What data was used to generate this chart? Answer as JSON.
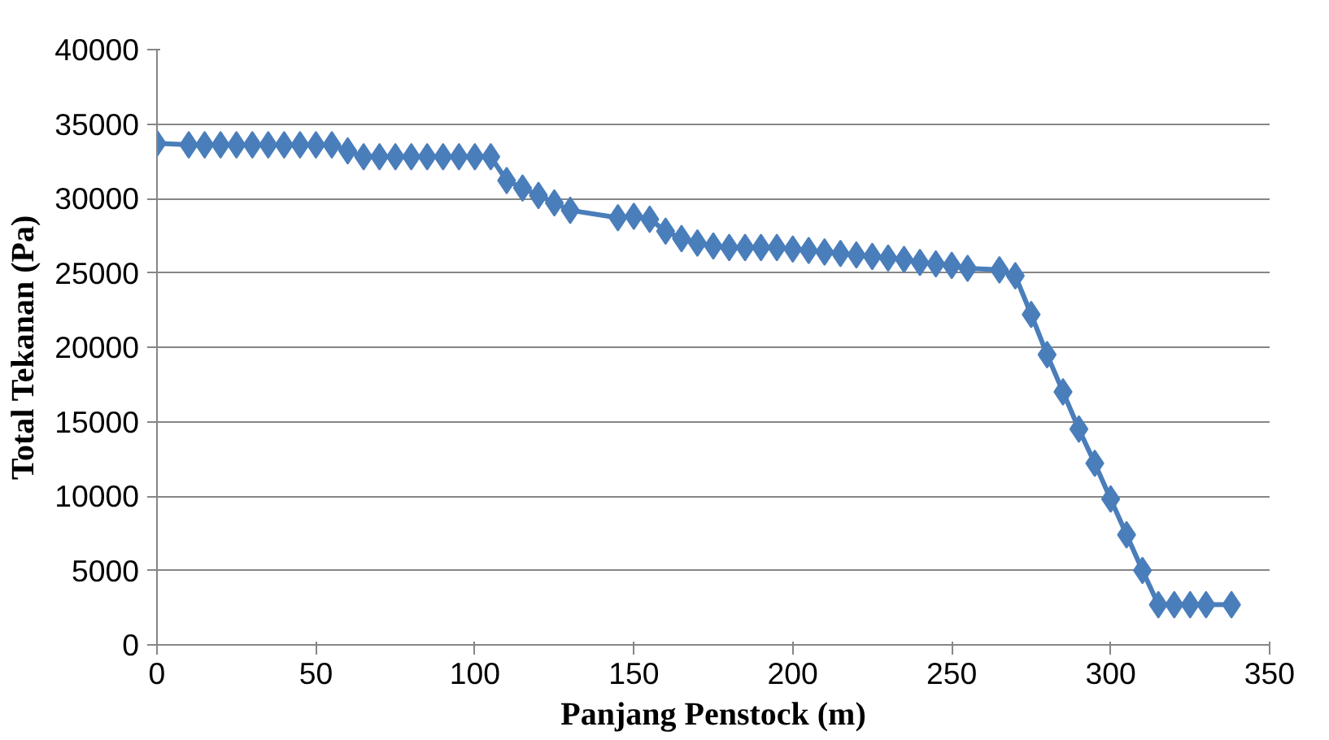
{
  "chart_data": {
    "type": "line",
    "xlabel": "Panjang Penstock (m)",
    "ylabel": "Total Tekanan (Pa)",
    "x": [
      0,
      10,
      15,
      20,
      25,
      30,
      35,
      40,
      45,
      50,
      55,
      60,
      65,
      70,
      75,
      80,
      85,
      90,
      95,
      100,
      105,
      110,
      115,
      120,
      125,
      130,
      145,
      150,
      155,
      160,
      165,
      170,
      175,
      180,
      185,
      190,
      195,
      200,
      205,
      210,
      215,
      220,
      225,
      230,
      235,
      240,
      245,
      250,
      255,
      265,
      270,
      275,
      280,
      285,
      290,
      295,
      300,
      305,
      310,
      315,
      320,
      325,
      330,
      338
    ],
    "series": [
      {
        "color": "#4a7ebb",
        "values": [
          33700,
          33600,
          33600,
          33600,
          33600,
          33600,
          33600,
          33600,
          33600,
          33600,
          33600,
          33200,
          32800,
          32800,
          32800,
          32800,
          32800,
          32800,
          32800,
          32800,
          32800,
          31200,
          30700,
          30200,
          29700,
          29200,
          28700,
          28800,
          28600,
          27800,
          27300,
          27000,
          26800,
          26700,
          26700,
          26700,
          26700,
          26600,
          26500,
          26400,
          26300,
          26200,
          26100,
          26000,
          25900,
          25700,
          25600,
          25500,
          25300,
          25200,
          24800,
          22200,
          19500,
          17000,
          14500,
          12200,
          9800,
          7400,
          5000,
          2700,
          2700,
          2700,
          2700,
          2700
        ]
      }
    ],
    "xlim": [
      0,
      350
    ],
    "xticks": [
      0,
      50,
      100,
      150,
      200,
      250,
      300,
      350
    ],
    "ylim": [
      0,
      40000
    ],
    "yticks": [
      0,
      5000,
      10000,
      15000,
      20000,
      25000,
      30000,
      35000,
      40000
    ],
    "grid": "y",
    "marker": "diamond",
    "line_style": "solid"
  }
}
